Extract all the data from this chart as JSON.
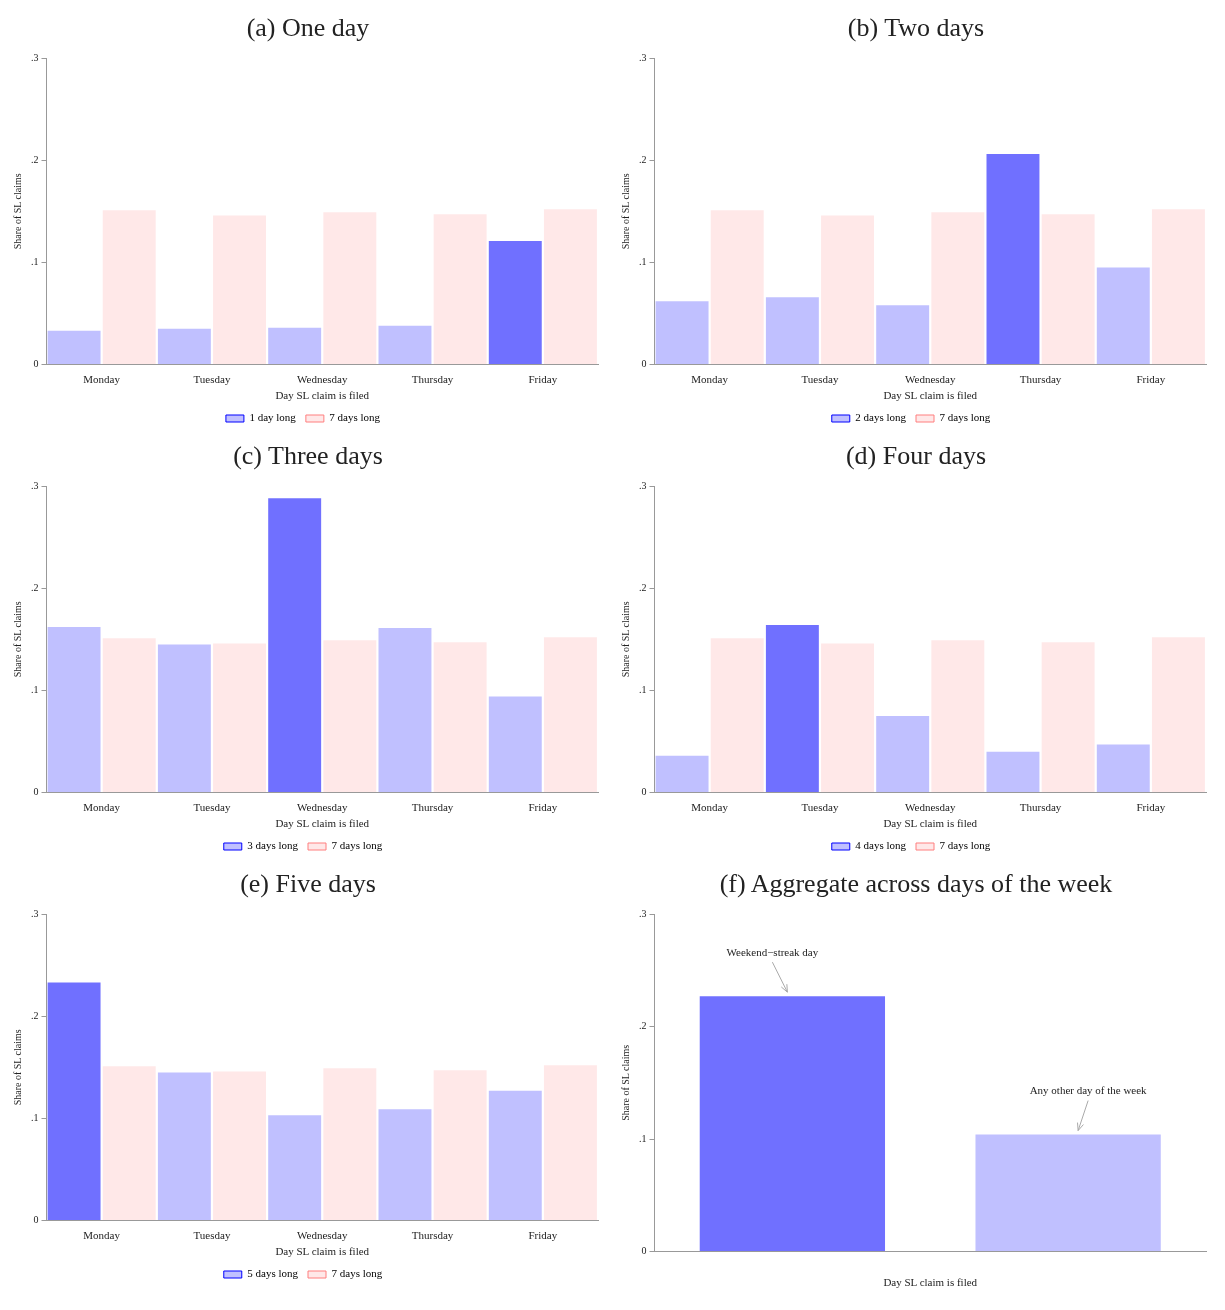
{
  "chart_data": [
    {
      "type": "bar",
      "title": "(a) One day",
      "xlabel": "Day SL claim is filed",
      "ylabel": "Share of SL claims",
      "categories": [
        "Monday",
        "Tuesday",
        "Wednesday",
        "Thursday",
        "Friday"
      ],
      "ylim": [
        0,
        0.3
      ],
      "yticks": [
        {
          "value": 0,
          "label": "0"
        },
        {
          "value": 0.1,
          "label": ".1"
        },
        {
          "value": 0.2,
          "label": ".2"
        },
        {
          "value": 0.3,
          "label": ".3"
        }
      ],
      "grid": false,
      "legend": "bottom",
      "series": [
        {
          "name": "1 day long",
          "color": "#c0c0ff",
          "colors": [
            "#c0c0ff",
            "#c0c0ff",
            "#c0c0ff",
            "#c0c0ff",
            "#7070ff"
          ],
          "values": [
            0.033,
            0.035,
            0.036,
            0.038,
            0.121
          ]
        },
        {
          "name": "7 days long",
          "color": "#ffe8e8",
          "values": [
            0.151,
            0.146,
            0.149,
            0.147,
            0.152
          ]
        }
      ]
    },
    {
      "type": "bar",
      "title": "(b) Two days",
      "xlabel": "Day SL claim is filed",
      "ylabel": "Share of SL claims",
      "categories": [
        "Monday",
        "Tuesday",
        "Wednesday",
        "Thursday",
        "Friday"
      ],
      "ylim": [
        0,
        0.3
      ],
      "yticks": [
        {
          "value": 0,
          "label": "0"
        },
        {
          "value": 0.1,
          "label": ".1"
        },
        {
          "value": 0.2,
          "label": ".2"
        },
        {
          "value": 0.3,
          "label": ".3"
        }
      ],
      "grid": false,
      "legend": "bottom",
      "series": [
        {
          "name": "2 days long",
          "color": "#c0c0ff",
          "colors": [
            "#c0c0ff",
            "#c0c0ff",
            "#c0c0ff",
            "#7070ff",
            "#c0c0ff"
          ],
          "values": [
            0.062,
            0.066,
            0.058,
            0.206,
            0.095
          ]
        },
        {
          "name": "7 days long",
          "color": "#ffe8e8",
          "values": [
            0.151,
            0.146,
            0.149,
            0.147,
            0.152
          ]
        }
      ]
    },
    {
      "type": "bar",
      "title": "(c) Three days",
      "xlabel": "Day SL claim is filed",
      "ylabel": "Share of SL claims",
      "categories": [
        "Monday",
        "Tuesday",
        "Wednesday",
        "Thursday",
        "Friday"
      ],
      "ylim": [
        0,
        0.3
      ],
      "yticks": [
        {
          "value": 0,
          "label": "0"
        },
        {
          "value": 0.1,
          "label": ".1"
        },
        {
          "value": 0.2,
          "label": ".2"
        },
        {
          "value": 0.3,
          "label": ".3"
        }
      ],
      "grid": false,
      "legend": "bottom",
      "series": [
        {
          "name": "3 days long",
          "color": "#c0c0ff",
          "colors": [
            "#c0c0ff",
            "#c0c0ff",
            "#7070ff",
            "#c0c0ff",
            "#c0c0ff"
          ],
          "values": [
            0.162,
            0.145,
            0.288,
            0.161,
            0.094
          ]
        },
        {
          "name": "7 days long",
          "color": "#ffe8e8",
          "values": [
            0.151,
            0.146,
            0.149,
            0.147,
            0.152
          ]
        }
      ]
    },
    {
      "type": "bar",
      "title": "(d) Four days",
      "xlabel": "Day SL claim is filed",
      "ylabel": "Share of SL claims",
      "categories": [
        "Monday",
        "Tuesday",
        "Wednesday",
        "Thursday",
        "Friday"
      ],
      "ylim": [
        0,
        0.3
      ],
      "yticks": [
        {
          "value": 0,
          "label": "0"
        },
        {
          "value": 0.1,
          "label": ".1"
        },
        {
          "value": 0.2,
          "label": ".2"
        },
        {
          "value": 0.3,
          "label": ".3"
        }
      ],
      "grid": false,
      "legend": "bottom",
      "series": [
        {
          "name": "4 days long",
          "color": "#c0c0ff",
          "colors": [
            "#c0c0ff",
            "#7070ff",
            "#c0c0ff",
            "#c0c0ff",
            "#c0c0ff"
          ],
          "values": [
            0.036,
            0.164,
            0.075,
            0.04,
            0.047
          ]
        },
        {
          "name": "7 days long",
          "color": "#ffe8e8",
          "values": [
            0.151,
            0.146,
            0.149,
            0.147,
            0.152
          ]
        }
      ]
    },
    {
      "type": "bar",
      "title": "(e) Five days",
      "xlabel": "Day SL claim is filed",
      "ylabel": "Share of SL claims",
      "categories": [
        "Monday",
        "Tuesday",
        "Wednesday",
        "Thursday",
        "Friday"
      ],
      "ylim": [
        0,
        0.3
      ],
      "yticks": [
        {
          "value": 0,
          "label": "0"
        },
        {
          "value": 0.1,
          "label": ".1"
        },
        {
          "value": 0.2,
          "label": ".2"
        },
        {
          "value": 0.3,
          "label": ".3"
        }
      ],
      "grid": false,
      "legend": "bottom",
      "series": [
        {
          "name": "5 days long",
          "color": "#c0c0ff",
          "colors": [
            "#7070ff",
            "#c0c0ff",
            "#c0c0ff",
            "#c0c0ff",
            "#c0c0ff"
          ],
          "values": [
            0.233,
            0.145,
            0.103,
            0.109,
            0.127
          ]
        },
        {
          "name": "7 days long",
          "color": "#ffe8e8",
          "values": [
            0.151,
            0.146,
            0.149,
            0.147,
            0.152
          ]
        }
      ]
    },
    {
      "type": "bar",
      "title": "(f) Aggregate across days of the week",
      "xlabel": "Day SL claim is filed",
      "ylabel": "Share of SL claims",
      "categories": [
        null,
        null
      ],
      "ylim": [
        0,
        0.3
      ],
      "yticks": [
        {
          "value": 0,
          "label": "0"
        },
        {
          "value": 0.1,
          "label": ".1"
        },
        {
          "value": 0.2,
          "label": ".2"
        },
        {
          "value": 0.3,
          "label": ".3"
        }
      ],
      "grid": false,
      "series": [
        {
          "color": "#7070ff",
          "colors": [
            "#7070ff",
            "#c0c0ff"
          ],
          "values": [
            0.227,
            0.104
          ]
        }
      ],
      "annotations": [
        "Weekend−streak day",
        "Any other day of the week"
      ]
    }
  ]
}
